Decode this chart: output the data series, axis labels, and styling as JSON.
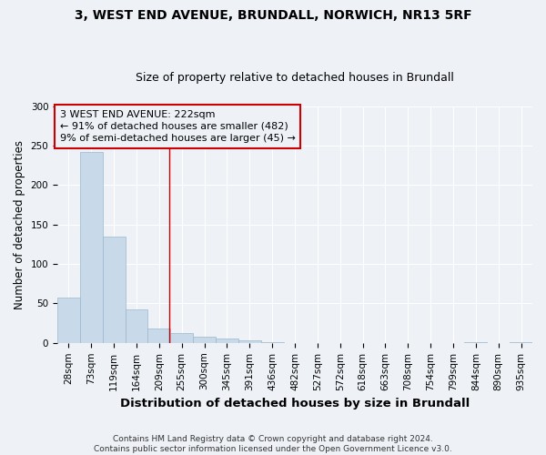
{
  "title": "3, WEST END AVENUE, BRUNDALL, NORWICH, NR13 5RF",
  "subtitle": "Size of property relative to detached houses in Brundall",
  "xlabel": "Distribution of detached houses by size in Brundall",
  "ylabel": "Number of detached properties",
  "bar_color": "#c8daea",
  "bar_edge_color": "#9ab8cc",
  "background_color": "#eef2f7",
  "grid_color": "#ffffff",
  "categories": [
    "28sqm",
    "73sqm",
    "119sqm",
    "164sqm",
    "209sqm",
    "255sqm",
    "300sqm",
    "345sqm",
    "391sqm",
    "436sqm",
    "482sqm",
    "527sqm",
    "572sqm",
    "618sqm",
    "663sqm",
    "708sqm",
    "754sqm",
    "799sqm",
    "844sqm",
    "890sqm",
    "935sqm"
  ],
  "values": [
    57,
    242,
    135,
    43,
    18,
    13,
    8,
    5,
    3,
    1,
    0,
    0,
    0,
    0,
    0,
    0,
    0,
    0,
    1,
    0,
    1
  ],
  "annotation_box_text": "3 WEST END AVENUE: 222sqm\n← 91% of detached houses are smaller (482)\n9% of semi-detached houses are larger (45) →",
  "vline_x_index": 4.45,
  "vline_color": "#cc0000",
  "ylim": [
    0,
    300
  ],
  "yticks": [
    0,
    50,
    100,
    150,
    200,
    250,
    300
  ],
  "footer": "Contains HM Land Registry data © Crown copyright and database right 2024.\nContains public sector information licensed under the Open Government Licence v3.0.",
  "title_fontsize": 10,
  "subtitle_fontsize": 9,
  "annotation_fontsize": 8,
  "xlabel_fontsize": 9.5,
  "ylabel_fontsize": 8.5,
  "tick_fontsize": 7.5,
  "footer_fontsize": 6.5
}
